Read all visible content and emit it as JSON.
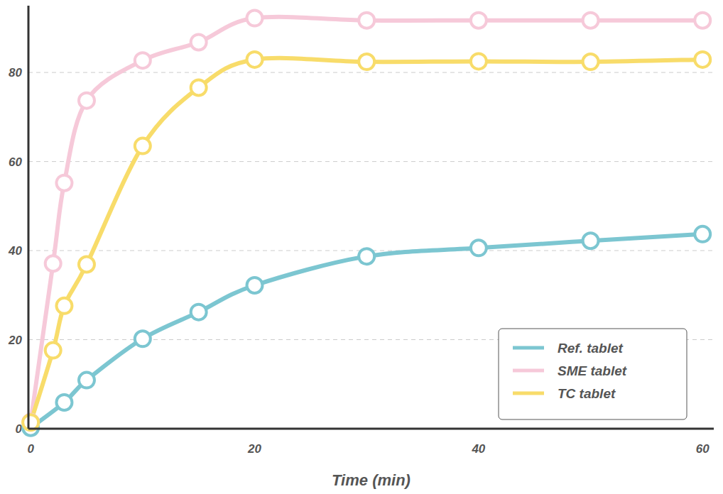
{
  "chart_data": {
    "type": "line",
    "x_label": "Time (min)",
    "xlim": [
      -0.2,
      61
    ],
    "xticks": [
      0,
      20,
      40,
      60
    ],
    "ylim": [
      0,
      95
    ],
    "yticks": [
      0,
      20,
      40,
      60,
      80
    ],
    "grid": true,
    "legend": "lower right",
    "marker": "circle",
    "line_style": "smooth",
    "series": [
      {
        "name": "SME tablet",
        "color": "#f6c9d9",
        "x": [
          0,
          2,
          3,
          5,
          10,
          15,
          20,
          30,
          40,
          50,
          60
        ],
        "values": [
          1.5,
          37.1,
          55.2,
          73.7,
          82.7,
          86.8,
          92.2,
          91.7,
          91.7,
          91.7,
          91.7
        ]
      },
      {
        "name": "Ref. tablet",
        "color": "#7cc6d1",
        "x": [
          0,
          3,
          5,
          10,
          15,
          20,
          30,
          40,
          50,
          60
        ],
        "values": [
          0.2,
          5.9,
          10.9,
          20.2,
          26.2,
          32.2,
          38.7,
          40.6,
          42.2,
          43.7
        ]
      },
      {
        "name": "TC tablet",
        "color": "#f8dc6a",
        "x": [
          0,
          2,
          3,
          5,
          10,
          15,
          20,
          30,
          40,
          50,
          60
        ],
        "values": [
          1.4,
          17.6,
          27.6,
          36.9,
          63.5,
          76.6,
          82.9,
          82.4,
          82.5,
          82.4,
          82.9
        ]
      }
    ]
  }
}
